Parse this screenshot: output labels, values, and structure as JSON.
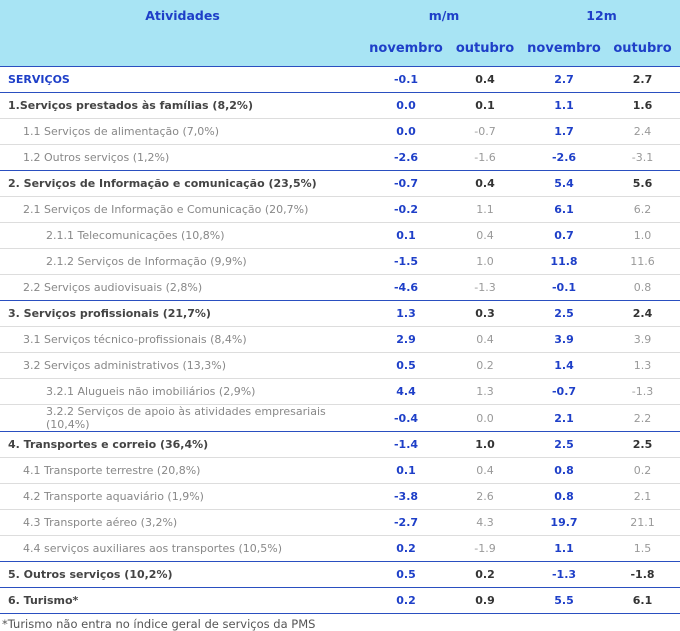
{
  "header": {
    "title": "Atividades",
    "groups": [
      "m/m",
      "12m"
    ],
    "columns": [
      "novembro",
      "outubro",
      "novembro",
      "outubro"
    ]
  },
  "table": {
    "rows": [
      [
        "SERVIÇOS",
        "-0.1",
        "0.4",
        "2.7",
        "2.7"
      ],
      [
        "1.Serviços prestados às famílias (8,2%)",
        "0.0",
        "0.1",
        "1.1",
        "1.6"
      ],
      [
        "1.1 Serviços de alimentação (7,0%)",
        "0.0",
        "-0.7",
        "1.7",
        "2.4"
      ],
      [
        "1.2 Outros serviços (1,2%)",
        "-2.6",
        "-1.6",
        "-2.6",
        "-3.1"
      ],
      [
        "2. Serviços de Informação e comunicação (23,5%)",
        "-0.7",
        "0.4",
        "5.4",
        "5.6"
      ],
      [
        "2.1 Serviços de Informação e Comunicação (20,7%)",
        "-0.2",
        "1.1",
        "6.1",
        "6.2"
      ],
      [
        "2.1.1 Telecomunicações (10,8%)",
        "0.1",
        "0.4",
        "0.7",
        "1.0"
      ],
      [
        "2.1.2 Serviços de Informação (9,9%)",
        "-1.5",
        "1.0",
        "11.8",
        "11.6"
      ],
      [
        "2.2 Serviços audiovisuais (2,8%)",
        "-4.6",
        "-1.3",
        "-0.1",
        "0.8"
      ],
      [
        "3. Serviços profissionais (21,7%)",
        "1.3",
        "0.3",
        "2.5",
        "2.4"
      ],
      [
        "3.1 Serviços técnico-profissionais (8,4%)",
        "2.9",
        "0.4",
        "3.9",
        "3.9"
      ],
      [
        "3.2 Serviços administrativos (13,3%)",
        "0.5",
        "0.2",
        "1.4",
        "1.3"
      ],
      [
        "3.2.1 Alugueis não imobiliários (2,9%)",
        "4.4",
        "1.3",
        "-0.7",
        "-1.3"
      ],
      [
        "3.2.2 Serviços de apoio às atividades empresariais (10,4%)",
        "-0.4",
        "0.0",
        "2.1",
        "2.2"
      ],
      [
        "4. Transportes e correio (36,4%)",
        "-1.4",
        "1.0",
        "2.5",
        "2.5"
      ],
      [
        "4.1 Transporte terrestre (20,8%)",
        "0.1",
        "0.4",
        "0.8",
        "0.2"
      ],
      [
        "4.2 Transporte aquaviário (1,9%)",
        "-3.8",
        "2.6",
        "0.8",
        "2.1"
      ],
      [
        "4.3 Transporte aéreo (3,2%)",
        "-2.7",
        "4.3",
        "19.7",
        "21.1"
      ],
      [
        "4.4 serviços auxiliares aos transportes (10,5%)",
        "0.2",
        "-1.9",
        "1.1",
        "1.5"
      ],
      [
        "5. Outros serviços (10,2%)",
        "0.5",
        "0.2",
        "-1.3",
        "-1.8"
      ],
      [
        "6. Turismo*",
        "0.2",
        "0.9",
        "5.5",
        "6.1"
      ]
    ]
  },
  "footnote": "*Turismo não entra no índice geral de serviços da PMS"
}
